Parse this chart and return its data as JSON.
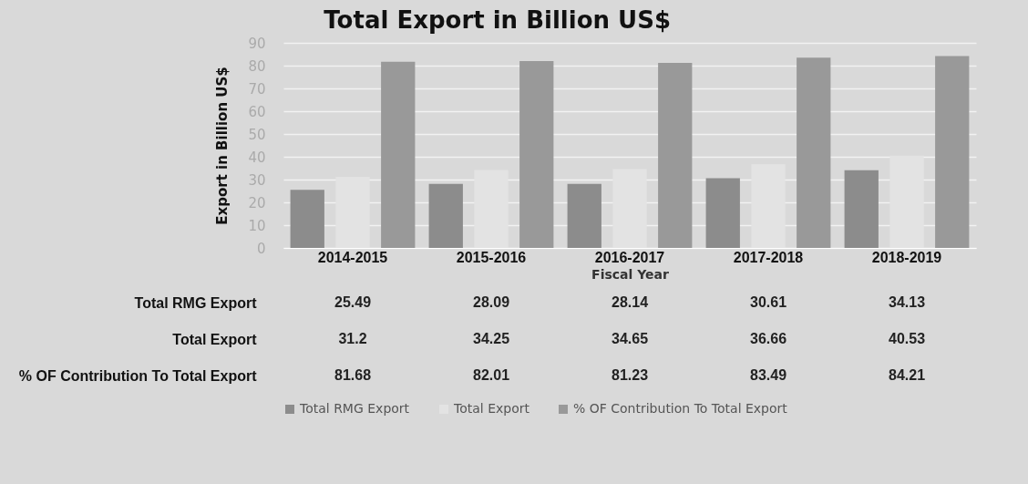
{
  "chart_data": {
    "type": "bar",
    "title": "Total Export in Billion US$",
    "xlabel": "Fiscal Year",
    "ylabel": "Export in  Billion US$",
    "categories": [
      "2014-2015",
      "2015-2016",
      "2016-2017",
      "2017-2018",
      "2018-2019"
    ],
    "series": [
      {
        "name": "Total RMG Export",
        "color": "#8c8c8c",
        "values": [
          25.49,
          28.09,
          28.14,
          30.61,
          34.13
        ]
      },
      {
        "name": "Total Export",
        "color": "#e3e3e3",
        "values": [
          31.2,
          34.25,
          34.65,
          36.66,
          40.53
        ]
      },
      {
        "name": "% OF Contribution To Total Export",
        "color": "#999999",
        "values": [
          81.68,
          82.01,
          81.23,
          83.49,
          84.21
        ]
      }
    ],
    "ylim": [
      0,
      90
    ],
    "yticks": [
      0,
      10,
      20,
      30,
      40,
      50,
      60,
      70,
      80,
      90
    ],
    "grid": "y",
    "legend": "bottom",
    "data_labels": true
  }
}
